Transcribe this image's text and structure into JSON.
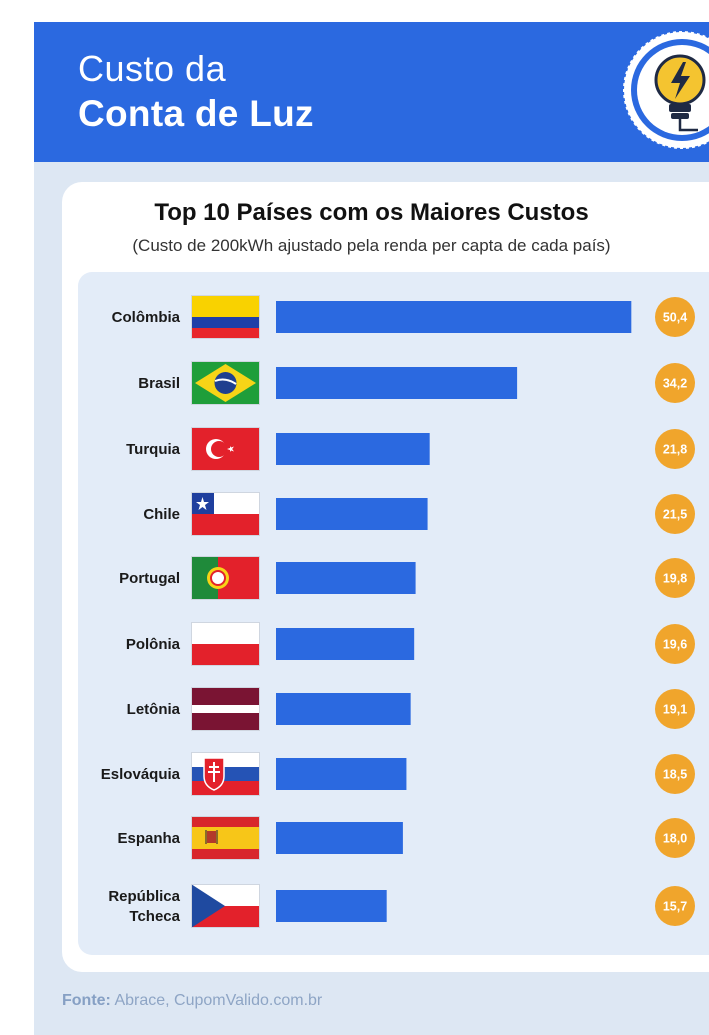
{
  "header": {
    "title_line1": "Custo da",
    "title_line2": "Conta de Luz",
    "icon": "lightbulb-bolt-icon",
    "color": "#2b69e0"
  },
  "source": {
    "label": "Fonte:",
    "text": " Abrace, CupomValido.com.br"
  },
  "chart_data": {
    "type": "bar",
    "orientation": "horizontal",
    "title": "Top 10 Países com os Maiores Custos",
    "subtitle": "(Custo de 200kWh ajustado pela renda per capta de cada país)",
    "categories": [
      "Colômbia",
      "Brasil",
      "Turquia",
      "Chile",
      "Portugal",
      "Polônia",
      "Letônia",
      "Eslováquia",
      "Espanha",
      "República Tcheca"
    ],
    "values": [
      50.4,
      34.2,
      21.8,
      21.5,
      19.8,
      19.6,
      19.1,
      18.5,
      18.0,
      15.7
    ],
    "value_labels": [
      "50,4",
      "34,2",
      "21,8",
      "21,5",
      "19,8",
      "19,6",
      "19,1",
      "18,5",
      "18,0",
      "15,7"
    ],
    "flags": [
      "colombia-flag-icon",
      "brazil-flag-icon",
      "turkey-flag-icon",
      "chile-flag-icon",
      "portugal-flag-icon",
      "poland-flag-icon",
      "latvia-flag-icon",
      "slovakia-flag-icon",
      "spain-flag-icon",
      "czech-republic-flag-icon"
    ],
    "bar_color": "#2b69e0",
    "badge_color": "#f0a52c",
    "grid": false,
    "legend": "none"
  }
}
